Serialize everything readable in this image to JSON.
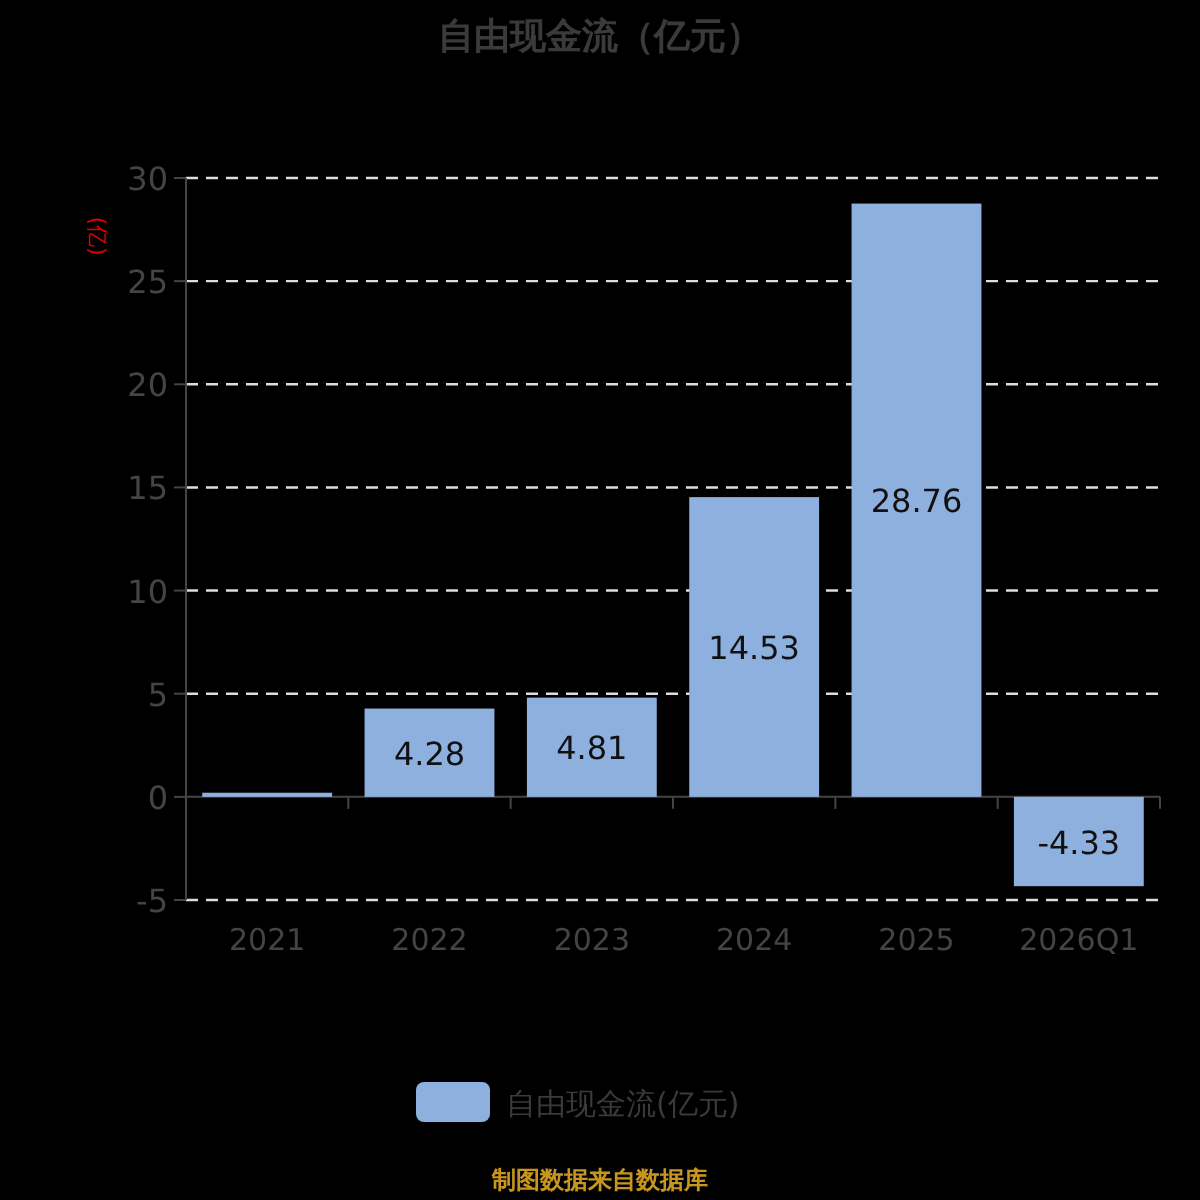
{
  "chart_data": {
    "type": "bar",
    "title": "自由现金流（亿元）",
    "ylabel": "(亿)",
    "categories": [
      "2021",
      "2022",
      "2023",
      "2024",
      "2025",
      "2026Q1"
    ],
    "series": [
      {
        "name": "自由现金流(亿元)",
        "color": "#8eb0de",
        "values": [
          0.2,
          4.28,
          4.81,
          14.53,
          28.76,
          -4.33
        ],
        "value_labels": [
          null,
          "4.28",
          "4.81",
          "14.53",
          "28.76",
          "-4.33"
        ]
      }
    ],
    "ylim": [
      -5,
      30
    ],
    "yticks": [
      -5,
      0,
      5,
      10,
      15,
      20,
      25,
      30
    ],
    "grid": "y",
    "legend": "bottom",
    "annotations": [
      "制图数据来自数据库"
    ]
  }
}
